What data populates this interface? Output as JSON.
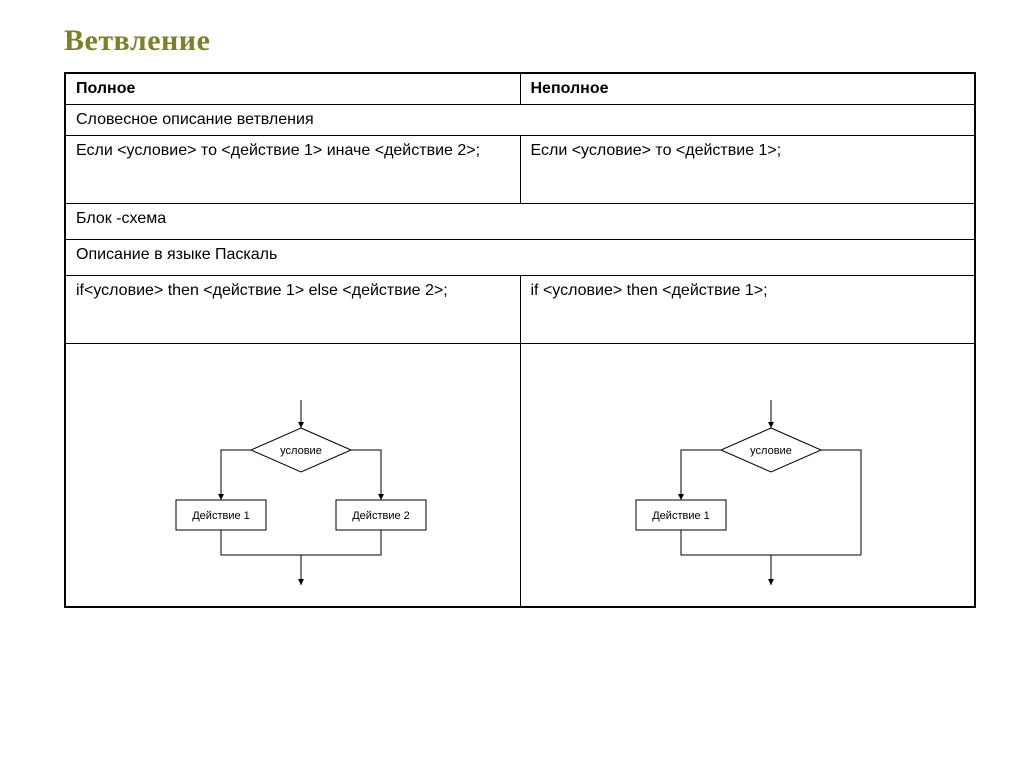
{
  "title": "Ветвление",
  "headers": {
    "full": "Полное",
    "partial": "Неполное"
  },
  "rows": {
    "verbal_label": "Словесное описание ветвления",
    "verbal_full": "Если <условие> то <действие 1> иначе <действие 2>;",
    "verbal_partial": "Если <условие> то <действие 1>;",
    "block_label": "Блок -схема",
    "pascal_label": "Описание в языке Паскаль",
    "pascal_full": " if<условие> then <действие 1> else <действие 2>;",
    "pascal_partial": "if <условие> then <действие 1>;"
  },
  "flowchart": {
    "condition": "условие",
    "action1": "Действие 1",
    "action2": "Действие 2",
    "stroke": "#000000",
    "fill": "#ffffff",
    "line_width": 1,
    "font_size": 11
  }
}
